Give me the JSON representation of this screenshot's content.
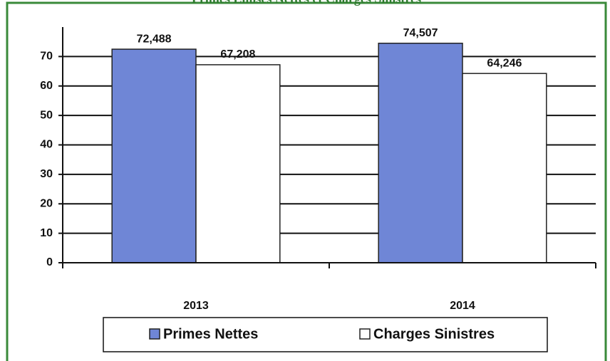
{
  "chart_data": {
    "type": "bar",
    "title": "Primes Emises Nettes et Charges Sinistres",
    "categories": [
      "2013",
      "2014"
    ],
    "series": [
      {
        "name": "Primes Nettes",
        "color": "#6f86d6",
        "values": [
          72.488,
          74.507
        ],
        "value_labels": [
          "72,488",
          "74,507"
        ]
      },
      {
        "name": "Charges Sinistres",
        "color": "#ffffff",
        "values": [
          67.208,
          64.246
        ],
        "value_labels": [
          "67,208",
          "64,246"
        ]
      }
    ],
    "ylim": [
      0,
      80
    ],
    "yticks": [
      0,
      10,
      20,
      30,
      40,
      50,
      60,
      70
    ],
    "grid": true,
    "legend": "bottom"
  }
}
